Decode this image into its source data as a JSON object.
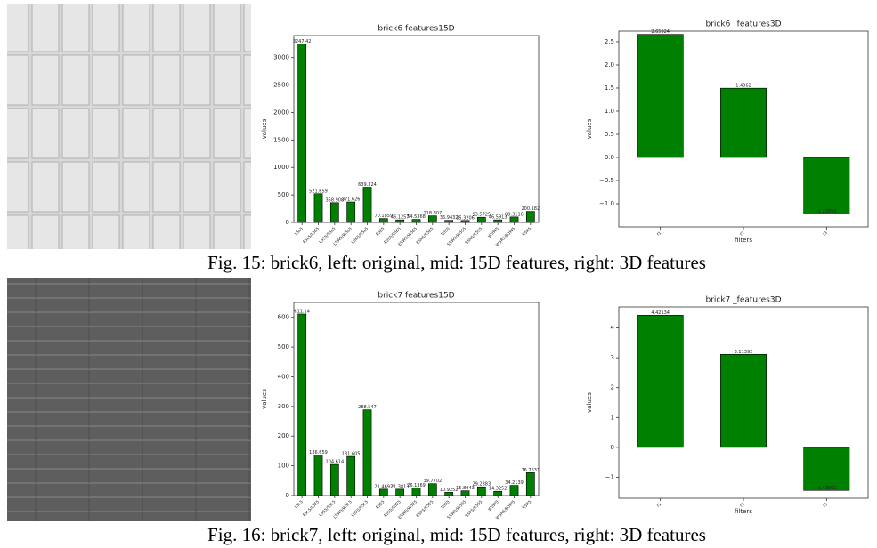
{
  "captions": [
    "Fig. 15: brick6, left: original, mid: 15D features, right: 3D features",
    "Fig. 16: brick7, left: original, mid: 15D features, right: 3D features"
  ],
  "chart_data": [
    {
      "type": "bar",
      "title": "brick6 features15D",
      "ylabel": "values",
      "color": "#008000",
      "categories": [
        "L5L5",
        "E5L5/L5E5",
        "L5S5/S5L5",
        "L5W5/W5L5",
        "L5R5/R5L5",
        "E5E5",
        "E5S5/S5E5",
        "E5W5/W5E5",
        "E5R5/R5E5",
        "S5S5",
        "S5W5/W5S5",
        "S5R5/R5S5",
        "W5W5",
        "W5R5/R5W5",
        "R5R5"
      ],
      "values": [
        3247.42,
        521.659,
        358.908,
        371.626,
        639.324,
        70.1859,
        46.1257,
        54.5368,
        118.807,
        36.9432,
        35.3206,
        93.5725,
        46.5913,
        99.3116,
        200.182
      ],
      "ylim": [
        0,
        3400
      ],
      "yticks": [
        0,
        500,
        1000,
        1500,
        2000,
        2500,
        3000
      ]
    },
    {
      "type": "bar",
      "title": "brick6 _features3D",
      "xlabel": "filters",
      "ylabel": "values",
      "color": "#008000",
      "categories": [
        "f1",
        "f2",
        "f3"
      ],
      "values": [
        2.65924,
        1.4962,
        -1.22051
      ],
      "ylim": [
        -1.5,
        2.73
      ],
      "yticks": [
        {
          "value": -1,
          "label": "−1.0"
        },
        {
          "value": -0.5,
          "label": "−0.5"
        },
        {
          "value": 0,
          "label": "0.0"
        },
        {
          "value": 0.5,
          "label": "0.5"
        },
        {
          "value": 1,
          "label": "1.0"
        },
        {
          "value": 1.5,
          "label": "1.5"
        },
        {
          "value": 2,
          "label": "2.0"
        },
        {
          "value": 2.5,
          "label": "2.5"
        }
      ]
    },
    {
      "type": "bar",
      "title": "brick7 features15D",
      "ylabel": "values",
      "color": "#008000",
      "categories": [
        "L5L5",
        "E5L5/L5E5",
        "L5S5/S5L5",
        "L5W5/W5L5",
        "L5R5/R5L5",
        "E5E5",
        "E5S5/S5E5",
        "E5W5/W5E5",
        "E5R5/R5E5",
        "S5S5",
        "S5W5/W5S5",
        "S5R5/R5S5",
        "W5W5",
        "W5R5/R5W5",
        "R5R5"
      ],
      "values": [
        611.14,
        136.659,
        104.614,
        131.605,
        288.547,
        21.4692,
        21.3813,
        26.1369,
        39.7702,
        10.9252,
        15.8943,
        29.2383,
        14.3252,
        34.2139,
        76.7631
      ],
      "ylim": [
        0,
        650
      ],
      "yticks": [
        0,
        100,
        200,
        300,
        400,
        500,
        600
      ]
    },
    {
      "type": "bar",
      "title": "brick7 _features3D",
      "xlabel": "filters",
      "ylabel": "values",
      "color": "#008000",
      "categories": [
        "f1",
        "f2",
        "f3"
      ],
      "values": [
        4.42134,
        3.11392,
        -1.43961
      ],
      "ylim": [
        -1.7,
        4.7
      ],
      "yticks": [
        {
          "value": -1,
          "label": "−1"
        },
        0,
        1,
        2,
        3,
        4
      ]
    }
  ]
}
